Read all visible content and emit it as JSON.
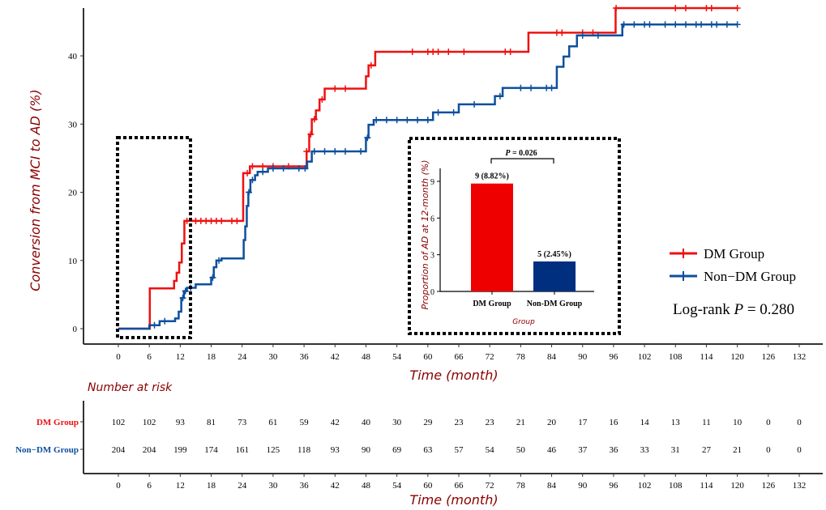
{
  "chart_data": [
    {
      "type": "line",
      "subtype": "kaplan-meier-cumulative-incidence",
      "xlabel": "Time   (month)",
      "ylabel": "Conversion from MCI to AD (%)",
      "xlim": [
        0,
        132
      ],
      "ylim": [
        0,
        45
      ],
      "xticks": [
        0,
        6,
        12,
        18,
        24,
        30,
        36,
        42,
        48,
        54,
        60,
        66,
        72,
        78,
        84,
        90,
        96,
        102,
        108,
        114,
        120,
        126,
        132
      ],
      "yticks": [
        0,
        10,
        20,
        30,
        40
      ],
      "grid": false,
      "legend_position": "right",
      "annotation": {
        "prefix": "Log-rank ",
        "p_label": "P",
        "suffix": " = 0.280"
      },
      "series": [
        {
          "name": "DM Group",
          "color": "#ee1111",
          "steps": [
            [
              0,
              0
            ],
            [
              6.1,
              5.9
            ],
            [
              10.8,
              7.0
            ],
            [
              11.3,
              8.2
            ],
            [
              11.8,
              9.7
            ],
            [
              12.3,
              12.5
            ],
            [
              12.8,
              15.8
            ],
            [
              24.2,
              22.8
            ],
            [
              25.5,
              23.8
            ],
            [
              36.5,
              26.0
            ],
            [
              37.0,
              28.5
            ],
            [
              37.5,
              30.7
            ],
            [
              38.3,
              32.0
            ],
            [
              39.0,
              33.6
            ],
            [
              40.0,
              35.2
            ],
            [
              48.0,
              37.0
            ],
            [
              48.5,
              38.6
            ],
            [
              49.8,
              40.6
            ],
            [
              79.5,
              43.4
            ],
            [
              96.4,
              47.0
            ],
            [
              120,
              47.0
            ]
          ],
          "censored": [
            13.3,
            15,
            16,
            17,
            18,
            19,
            20,
            22,
            23,
            25,
            26,
            28,
            30,
            33,
            36.5,
            37.3,
            38,
            39.5,
            42,
            44,
            49,
            57,
            60,
            61,
            62,
            64,
            67,
            75,
            76,
            85,
            86,
            90,
            92,
            96.5,
            108,
            110,
            114,
            115,
            120
          ]
        },
        {
          "name": "Non−DM Group",
          "color": "#0d4f9e",
          "steps": [
            [
              0,
              0
            ],
            [
              6.0,
              0.5
            ],
            [
              8.0,
              1.1
            ],
            [
              11.0,
              1.5
            ],
            [
              11.7,
              2.5
            ],
            [
              12.2,
              4.5
            ],
            [
              12.7,
              5.5
            ],
            [
              13.3,
              6.0
            ],
            [
              15.0,
              6.5
            ],
            [
              18.0,
              7.5
            ],
            [
              18.5,
              9.0
            ],
            [
              19.0,
              10.0
            ],
            [
              20.0,
              10.3
            ],
            [
              24.3,
              13.0
            ],
            [
              24.6,
              15.0
            ],
            [
              24.9,
              18.0
            ],
            [
              25.2,
              20.0
            ],
            [
              25.6,
              21.8
            ],
            [
              26.5,
              22.5
            ],
            [
              27.0,
              23.0
            ],
            [
              29.0,
              23.5
            ],
            [
              36.6,
              24.5
            ],
            [
              37.5,
              26.0
            ],
            [
              48.0,
              28.0
            ],
            [
              48.5,
              29.9
            ],
            [
              49.5,
              30.6
            ],
            [
              61.0,
              31.7
            ],
            [
              66.0,
              32.9
            ],
            [
              73.0,
              34.1
            ],
            [
              74.5,
              35.3
            ],
            [
              85.0,
              38.4
            ],
            [
              86.3,
              39.9
            ],
            [
              87.4,
              41.4
            ],
            [
              88.9,
              43.0
            ],
            [
              97.7,
              44.6
            ],
            [
              120,
              44.6
            ]
          ],
          "censored": [
            7,
            9,
            12.5,
            13,
            14,
            18.3,
            19.5,
            25.3,
            26,
            28,
            30,
            32,
            35,
            36.2,
            38,
            40,
            42,
            44,
            47,
            48.3,
            50,
            52,
            54,
            56,
            58,
            60,
            62,
            65,
            69,
            74,
            78,
            80,
            83,
            84,
            90,
            93,
            98,
            100,
            102,
            103,
            106,
            108,
            110,
            112,
            113,
            115,
            116,
            118,
            120
          ]
        }
      ]
    },
    {
      "type": "bar",
      "ylabel": "Proportion of AD at 12-month (%)",
      "xlabel": "Group",
      "categories": [
        "DM Group",
        "Non-DM Group"
      ],
      "values": [
        8.82,
        2.45
      ],
      "data_labels": [
        "9 (8.82%)",
        "5 (2.45%)"
      ],
      "colors": [
        "#ee0000",
        "#002f80"
      ],
      "ylim": [
        0,
        10.5
      ],
      "yticks": [
        0,
        3,
        6,
        9
      ],
      "annotation": {
        "p_label": "P",
        "suffix": " = 0.026"
      }
    },
    {
      "type": "table",
      "title": "Number at risk",
      "xlabel": "Time   (month)",
      "columns": [
        0,
        6,
        12,
        18,
        24,
        30,
        36,
        42,
        48,
        54,
        60,
        66,
        72,
        78,
        84,
        90,
        96,
        102,
        108,
        114,
        120,
        126,
        132
      ],
      "rows": [
        {
          "name": "DM Group",
          "color": "#ee1111",
          "values": [
            102,
            102,
            93,
            81,
            73,
            61,
            59,
            42,
            40,
            30,
            29,
            23,
            23,
            21,
            20,
            17,
            16,
            14,
            13,
            11,
            10,
            0,
            0
          ]
        },
        {
          "name": "Non−DM Group",
          "color": "#0d4f9e",
          "values": [
            204,
            204,
            199,
            174,
            161,
            125,
            118,
            93,
            90,
            69,
            63,
            57,
            54,
            50,
            46,
            37,
            36,
            33,
            31,
            27,
            21,
            0,
            0
          ]
        }
      ]
    }
  ]
}
